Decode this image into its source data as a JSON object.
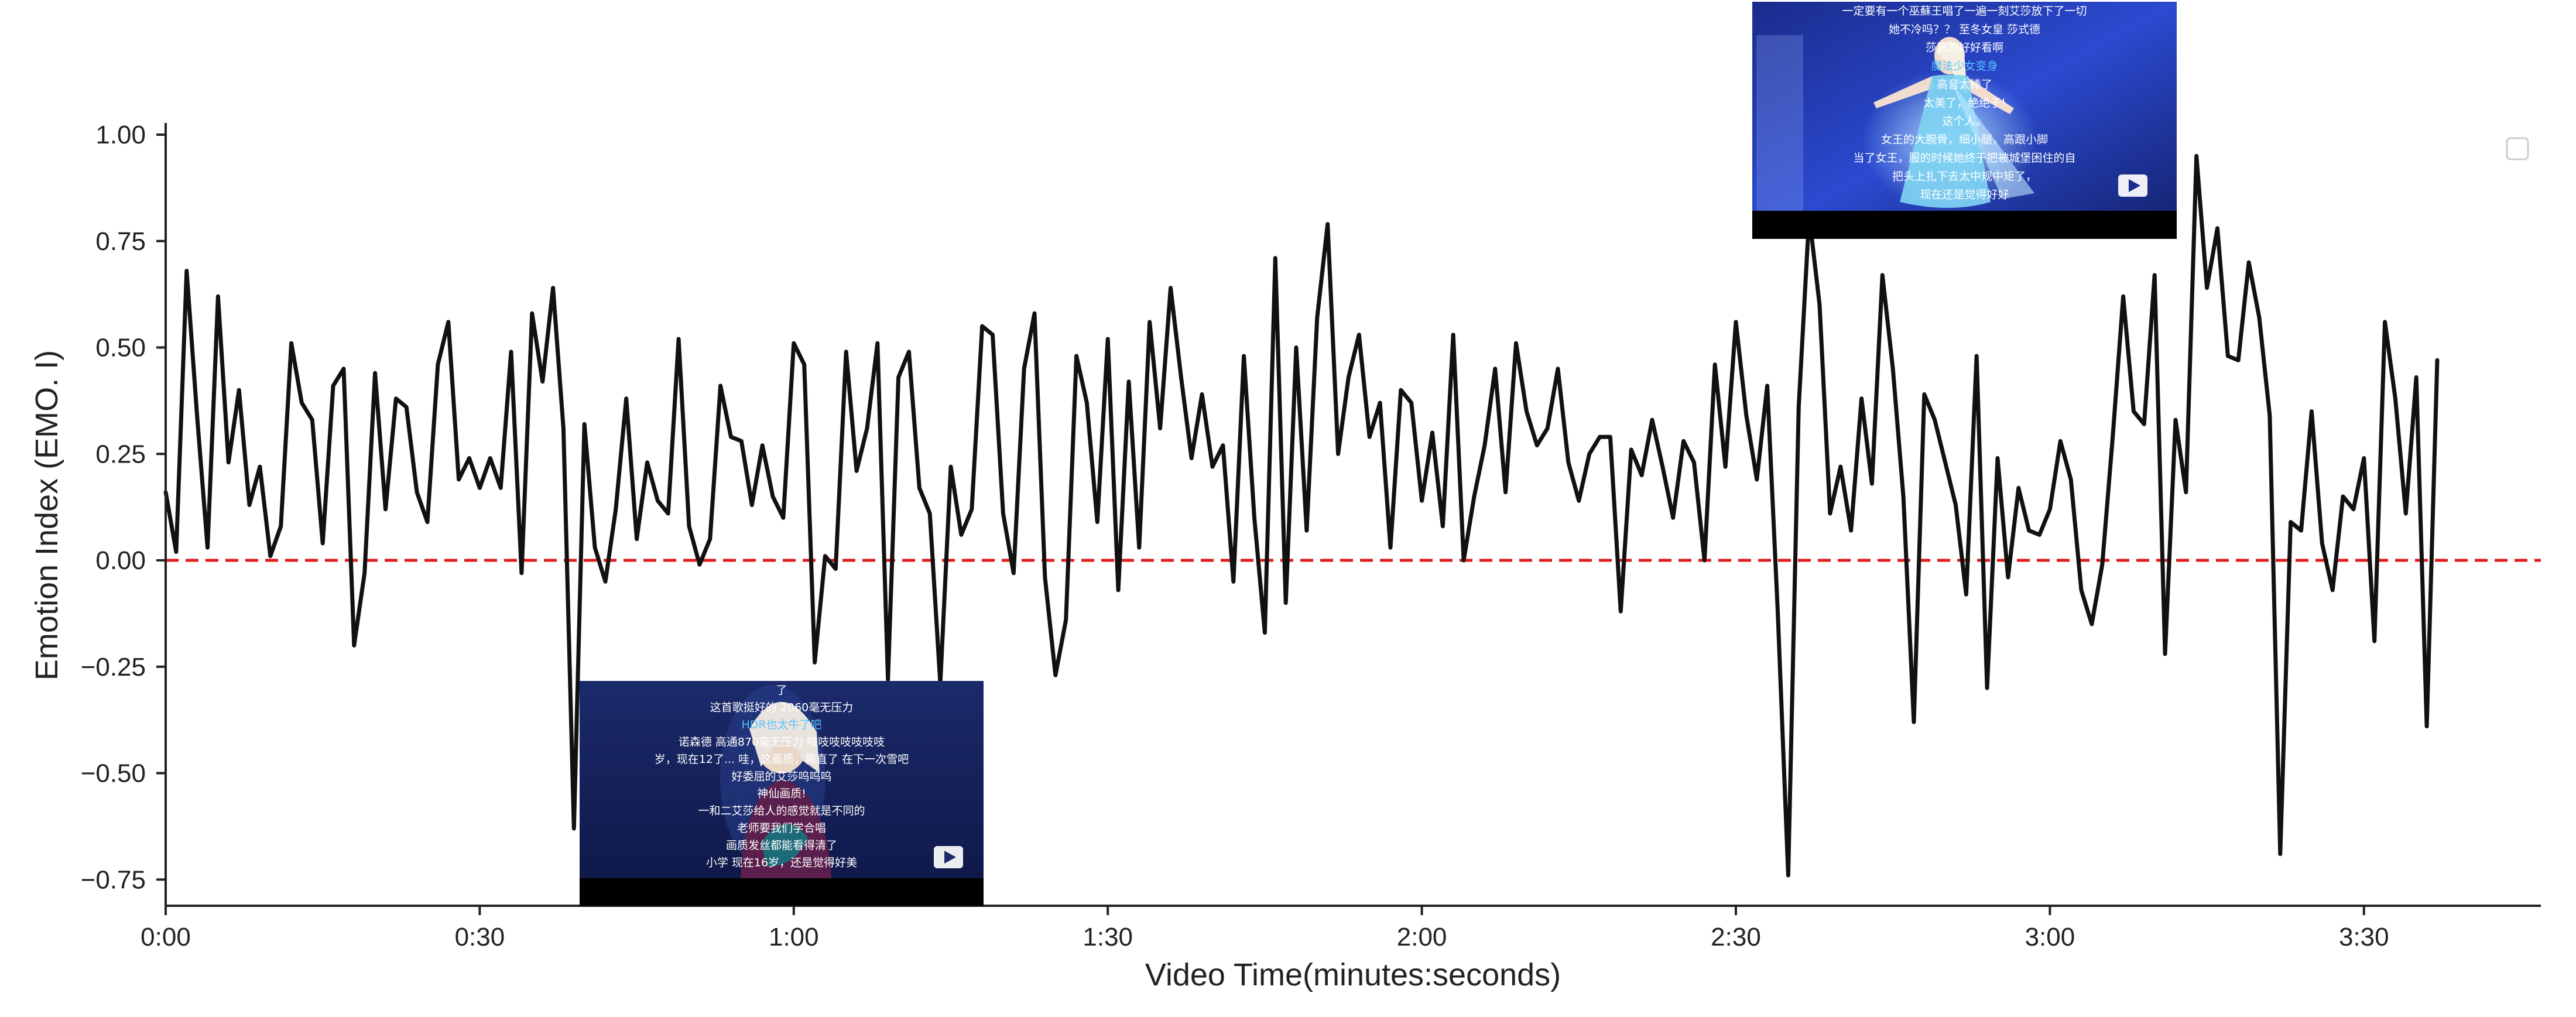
{
  "chart_data": {
    "type": "line",
    "title": "",
    "xlabel": "Video Time(minutes:seconds)",
    "ylabel": "Emotion Index (EMO. I)",
    "xlim": [
      0,
      228
    ],
    "ylim": [
      -0.8,
      1.03
    ],
    "x_ticks": [
      0,
      30,
      60,
      90,
      120,
      150,
      180,
      210
    ],
    "x_tick_labels": [
      "0:00",
      "0:30",
      "1:00",
      "1:30",
      "2:00",
      "2:30",
      "3:00",
      "3:30"
    ],
    "y_ticks": [
      -0.75,
      -0.5,
      -0.25,
      0.0,
      0.25,
      0.5,
      0.75,
      1.0
    ],
    "y_tick_labels": [
      "−0.75",
      "−0.50",
      "−0.25",
      "0.00",
      "0.25",
      "0.50",
      "0.75",
      "1.00"
    ],
    "grid": false,
    "reference_line": {
      "y": 0.0,
      "style": "dashed",
      "color": "#e01b1b"
    },
    "series": [
      {
        "color": "#111111",
        "x_step": 1,
        "x_start": 0,
        "values": [
          0.16,
          0.02,
          0.68,
          0.34,
          0.03,
          0.62,
          0.23,
          0.4,
          0.13,
          0.22,
          0.01,
          0.08,
          0.51,
          0.37,
          0.33,
          0.04,
          0.41,
          0.45,
          -0.2,
          -0.03,
          0.44,
          0.12,
          0.38,
          0.36,
          0.16,
          0.09,
          0.46,
          0.56,
          0.19,
          0.24,
          0.17,
          0.24,
          0.17,
          0.49,
          -0.03,
          0.58,
          0.42,
          0.64,
          0.31,
          -0.63,
          0.32,
          0.03,
          -0.05,
          0.12,
          0.38,
          0.05,
          0.23,
          0.14,
          0.11,
          0.52,
          0.08,
          -0.01,
          0.05,
          0.41,
          0.29,
          0.28,
          0.13,
          0.27,
          0.15,
          0.1,
          0.51,
          0.46,
          -0.24,
          0.01,
          -0.02,
          0.49,
          0.21,
          0.31,
          0.51,
          -0.28,
          0.43,
          0.49,
          0.17,
          0.11,
          -0.29,
          0.22,
          0.06,
          0.12,
          0.55,
          0.53,
          0.11,
          -0.03,
          0.45,
          0.58,
          -0.04,
          -0.27,
          -0.14,
          0.48,
          0.37,
          0.09,
          0.52,
          -0.07,
          0.42,
          0.03,
          0.56,
          0.31,
          0.64,
          0.43,
          0.24,
          0.39,
          0.22,
          0.27,
          -0.05,
          0.48,
          0.1,
          -0.17,
          0.71,
          -0.1,
          0.5,
          0.07,
          0.57,
          0.79,
          0.25,
          0.43,
          0.53,
          0.29,
          0.37,
          0.03,
          0.4,
          0.37,
          0.14,
          0.3,
          0.08,
          0.53,
          0.0,
          0.15,
          0.27,
          0.45,
          0.16,
          0.51,
          0.35,
          0.27,
          0.31,
          0.45,
          0.23,
          0.14,
          0.25,
          0.29,
          0.29,
          -0.12,
          0.26,
          0.2,
          0.33,
          0.22,
          0.1,
          0.28,
          0.23,
          0.0,
          0.46,
          0.22,
          0.56,
          0.34,
          0.19,
          0.41,
          -0.12,
          -0.74,
          0.36,
          0.81,
          0.6,
          0.11,
          0.22,
          0.07,
          0.38,
          0.18,
          0.67,
          0.45,
          0.15,
          -0.38,
          0.39,
          0.33,
          0.23,
          0.13,
          -0.08,
          0.48,
          -0.3,
          0.24,
          -0.04,
          0.17,
          0.07,
          0.06,
          0.12,
          0.28,
          0.19,
          -0.07,
          -0.15,
          -0.01,
          0.29,
          0.62,
          0.35,
          0.32,
          0.67,
          -0.22,
          0.33,
          0.16,
          0.95,
          0.64,
          0.78,
          0.48,
          0.47,
          0.7,
          0.57,
          0.34,
          -0.69,
          0.09,
          0.07,
          0.35,
          0.04,
          -0.07,
          0.15,
          0.12,
          0.24,
          -0.19,
          0.56,
          0.38,
          0.11,
          0.43,
          -0.39,
          0.47
        ]
      }
    ]
  },
  "thumbnails": [
    {
      "name": "thumbnail-sad-scene",
      "lines": [
        {
          "text": "了",
          "accent": false
        },
        {
          "text": "这首歌挺好的    2060毫无压力",
          "accent": false
        },
        {
          "text": "HDR也太牛了吧",
          "accent": true
        },
        {
          "text": "诺森德       高通870毫无压力    吱吱吱吱吱吱吱",
          "accent": false
        },
        {
          "text": "岁，现在12了...           哇，这画质，简直了           在下一次雪吧",
          "accent": false
        },
        {
          "text": "好委屈的艾莎呜呜呜",
          "accent": false
        },
        {
          "text": "神仙画质!",
          "accent": false
        },
        {
          "text": "一和二艾莎给人的感觉就是不同的",
          "accent": false
        },
        {
          "text": "老师要我们学合唱",
          "accent": false
        },
        {
          "text": "画质发丝都能看得清了",
          "accent": false
        },
        {
          "text": "小学                      现在16岁，还是觉得好美",
          "accent": false
        }
      ]
    },
    {
      "name": "thumbnail-happy-scene",
      "lines": [
        {
          "text": "一定要有一个巫蘇王唱了一遍一刻艾莎放下了一切",
          "accent": false
        },
        {
          "text": "她不冷吗？？                至冬女皇                莎式德",
          "accent": false
        },
        {
          "text": "莎真的好好看啊",
          "accent": false
        },
        {
          "text": "魔法少女变身",
          "accent": true
        },
        {
          "text": "高音太棒了",
          "accent": false
        },
        {
          "text": "太美了，绝绝子!",
          "accent": false
        },
        {
          "text": "这个人。",
          "accent": false
        },
        {
          "text": "女王的大腕骨，细小腿，高跟小脚",
          "accent": false
        },
        {
          "text": "当了女王，服的时候她终于把被城堡困住的自",
          "accent": false
        },
        {
          "text": "把头上扎下去太中规中矩了，",
          "accent": false
        },
        {
          "text": "现在还是觉得好好",
          "accent": false
        }
      ]
    }
  ]
}
